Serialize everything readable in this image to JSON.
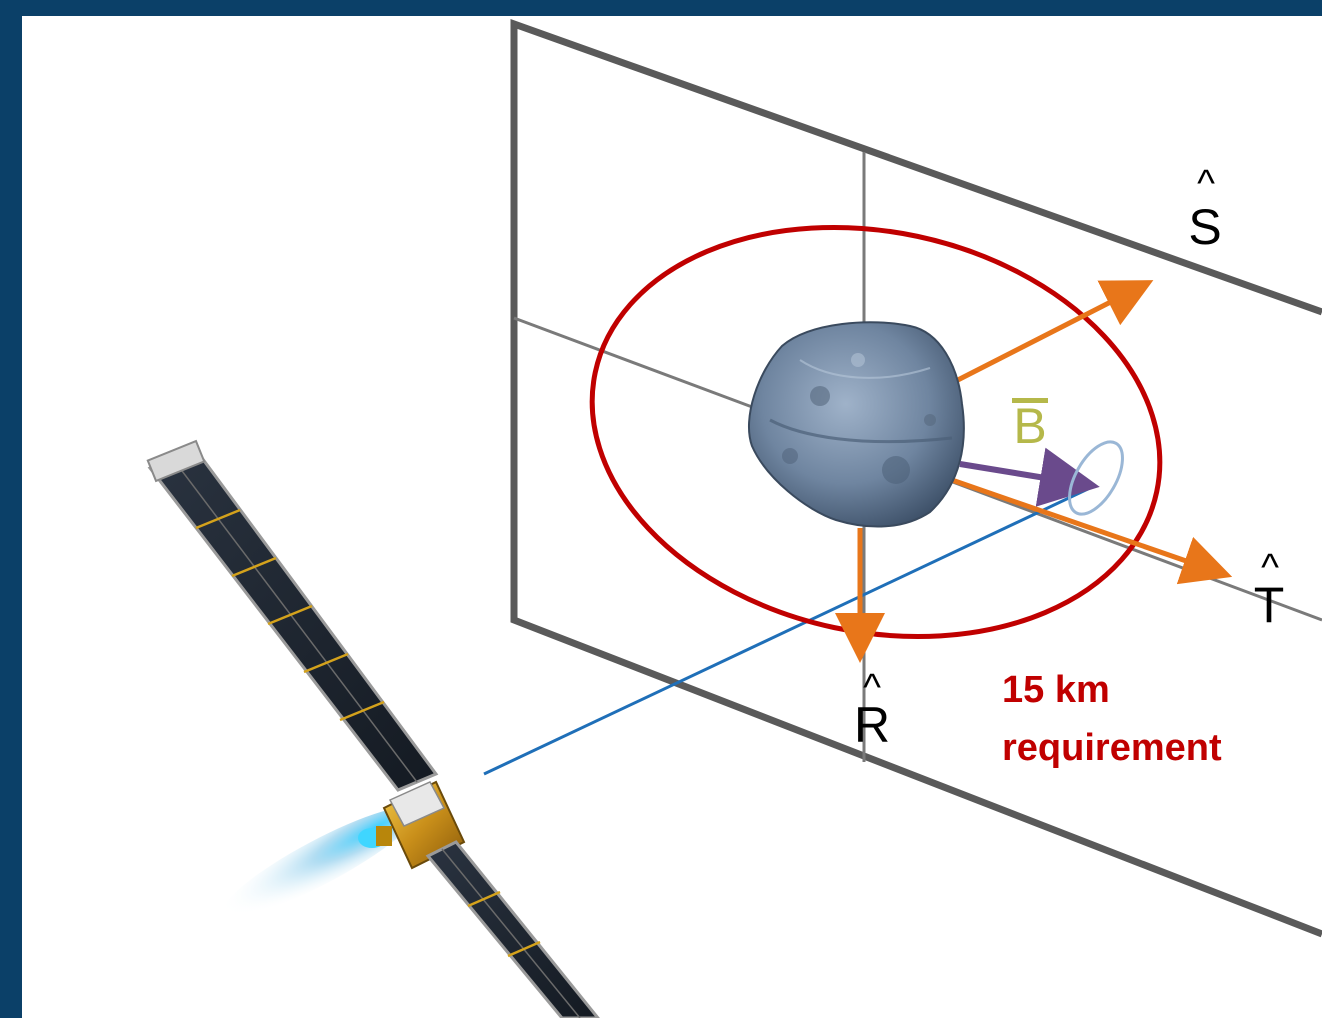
{
  "labels": {
    "s_axis": "S",
    "t_axis": "T",
    "r_axis": "R",
    "b_vector": "B",
    "hat": "^",
    "requirement_line1": "15 km",
    "requirement_line2": "requirement"
  },
  "colors": {
    "frame_border": "#0b4068",
    "canvas": "#ffffff",
    "plane_outline": "#5a5a5a",
    "plane_grid": "#7a7a7a",
    "requirement_ellipse": "#c00000",
    "axis_arrows": "#e8761a",
    "b_vector": "#6a4a8c",
    "b_label": "#b5b84a",
    "error_ellipse": "#9ab7d6",
    "approach_line": "#1f6fb8",
    "axis_labels": "#000000",
    "requirement_text": "#c00000"
  },
  "icons": {
    "asteroid": "asteroid-icon",
    "spacecraft": "spacecraft-icon"
  }
}
